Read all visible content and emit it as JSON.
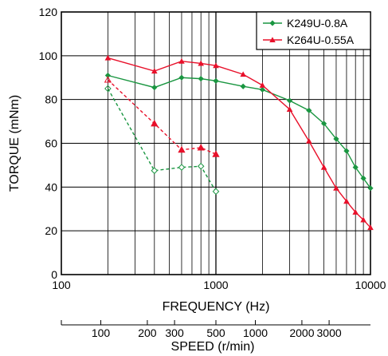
{
  "chart_data": {
    "type": "line",
    "xlabel": "FREQUENCY (Hz)",
    "ylabel": "TORQUE (mNm)",
    "x_scale": "log",
    "xlim": [
      100,
      10000
    ],
    "ylim": [
      0,
      120
    ],
    "x_ticks": [
      "100",
      "1000",
      "10000"
    ],
    "y_ticks": [
      "0",
      "20",
      "40",
      "60",
      "80",
      "100",
      "120"
    ],
    "secondary_axis": {
      "label": "SPEED (r/min)",
      "ticks": [
        {
          "label": "100",
          "freq": 180
        },
        {
          "label": "200",
          "freq": 360
        },
        {
          "label": "300",
          "freq": 540
        },
        {
          "label": "500",
          "freq": 1000
        },
        {
          "label": "1000",
          "freq": 1800
        },
        {
          "label": "2000",
          "freq": 3600
        },
        {
          "label": "3000",
          "freq": 5400
        }
      ],
      "show_ticks": [
        "100",
        "200",
        "300",
        "500",
        "1000",
        "2000",
        "3000"
      ]
    },
    "grid": true,
    "legend_position": "top-right",
    "series": [
      {
        "name": "K249U-0.8A",
        "color": "#1a9641",
        "marker": "diamond",
        "solid": {
          "x": [
            200,
            400,
            600,
            800,
            1000,
            1500,
            2000,
            3000,
            4000,
            5000,
            6000,
            7000,
            8000,
            9000,
            10000
          ],
          "y": [
            91,
            85.5,
            90,
            89.5,
            88.5,
            86,
            84.5,
            79.5,
            75,
            69,
            62,
            56.5,
            49,
            44,
            39.5
          ]
        },
        "dashed": {
          "x": [
            200,
            400,
            600,
            800,
            1000
          ],
          "y": [
            85,
            47.5,
            49,
            49.5,
            38
          ]
        }
      },
      {
        "name": "K264U-0.55A",
        "color": "#e8102a",
        "marker": "triangle",
        "solid": {
          "x": [
            200,
            400,
            600,
            800,
            1000,
            1500,
            2000,
            3000,
            4000,
            5000,
            6000,
            7000,
            8000,
            9000,
            10000
          ],
          "y": [
            99,
            93,
            97.5,
            96.5,
            95.5,
            91.5,
            86.5,
            75.5,
            61,
            49,
            39.5,
            33.5,
            28.5,
            25,
            21.5
          ]
        },
        "dashed": {
          "x": [
            200,
            400,
            600,
            800,
            1000
          ],
          "y": [
            89,
            69,
            57,
            58,
            55
          ]
        }
      }
    ]
  }
}
